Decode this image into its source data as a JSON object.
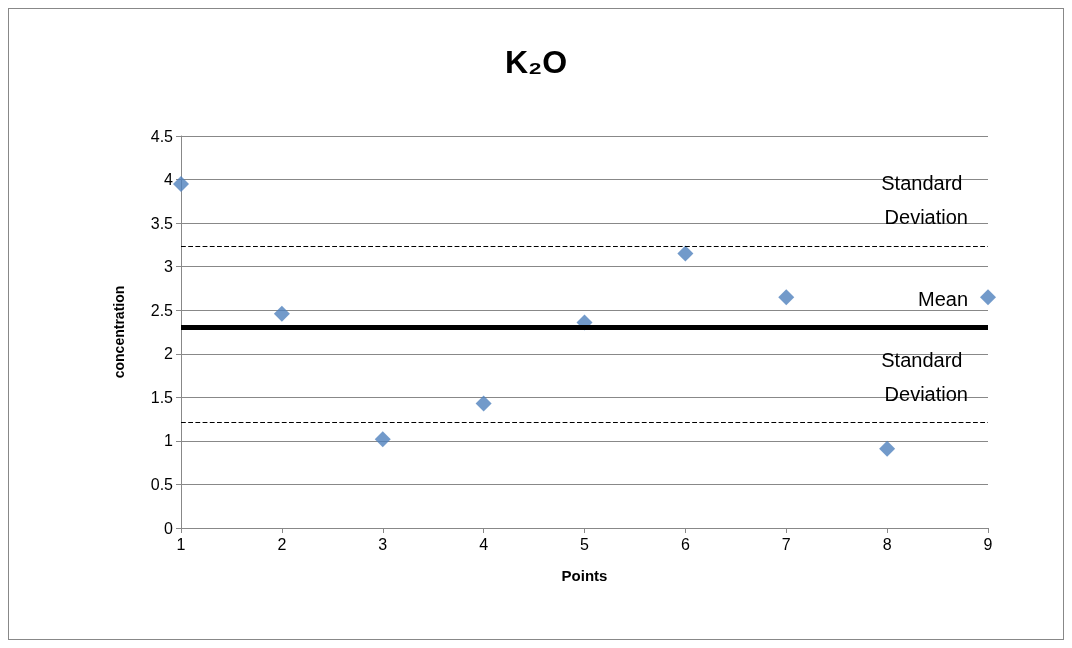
{
  "chart_data": {
    "type": "scatter",
    "title": "K₂O",
    "xlabel": "Points",
    "ylabel": "concentration",
    "x": [
      1,
      2,
      3,
      4,
      5,
      6,
      7,
      8,
      9
    ],
    "series": [
      {
        "color": "#4f81bd",
        "values": [
          3.95,
          2.46,
          1.02,
          1.43,
          2.36,
          3.15,
          2.65,
          0.91,
          2.65
        ]
      }
    ],
    "xlim": [
      1,
      9
    ],
    "xticks": [
      1,
      2,
      3,
      4,
      5,
      6,
      7,
      8,
      9
    ],
    "ylim": [
      0,
      4.5
    ],
    "yticks": [
      0,
      0.5,
      1,
      1.5,
      2,
      2.5,
      3,
      3.5,
      4,
      4.5
    ],
    "ref_lines": [
      {
        "axis": "y",
        "value": 3.24,
        "label": "Standard Deviation",
        "color": "#000000",
        "line_style": "dashed"
      },
      {
        "axis": "y",
        "value": 2.3,
        "label": "Mean",
        "color": "#000000",
        "line_style": "solid"
      },
      {
        "axis": "y",
        "value": 1.21,
        "label": "Standard Deviation",
        "color": "#000000",
        "line_style": "dashed"
      }
    ],
    "grid": "y",
    "marker": "diamond"
  }
}
